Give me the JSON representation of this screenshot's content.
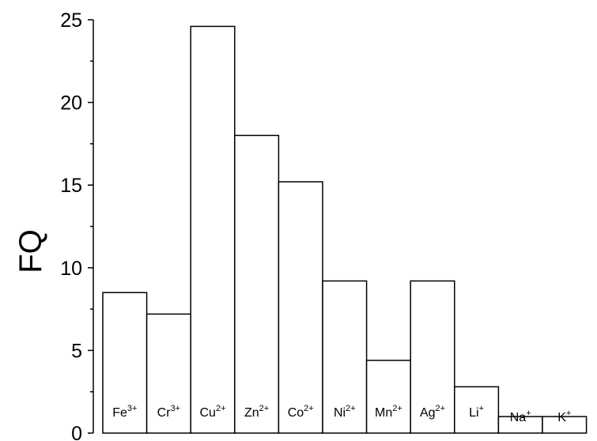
{
  "chart_data": {
    "type": "bar",
    "title": "",
    "xlabel": "",
    "ylabel": "FQ",
    "ylim": [
      0,
      25
    ],
    "yticks": [
      0,
      5,
      10,
      15,
      20,
      25
    ],
    "categories": [
      {
        "base": "Fe",
        "charge": "3+"
      },
      {
        "base": "Cr",
        "charge": "3+"
      },
      {
        "base": "Cu",
        "charge": "2+"
      },
      {
        "base": "Zn",
        "charge": "2+"
      },
      {
        "base": "Co",
        "charge": "2+"
      },
      {
        "base": "Ni",
        "charge": "2+"
      },
      {
        "base": "Mn",
        "charge": "2+"
      },
      {
        "base": "Ag",
        "charge": "2+"
      },
      {
        "base": "Li",
        "charge": "+"
      },
      {
        "base": "Na",
        "charge": "+"
      },
      {
        "base": "K",
        "charge": "+"
      }
    ],
    "values": [
      8.5,
      7.2,
      24.6,
      18.0,
      15.2,
      9.2,
      4.4,
      9.2,
      2.8,
      1.0,
      1.0
    ],
    "grid": false,
    "colors": {
      "bar_fill": "#ffffff",
      "bar_stroke": "#000000",
      "axis": "#000000"
    }
  }
}
